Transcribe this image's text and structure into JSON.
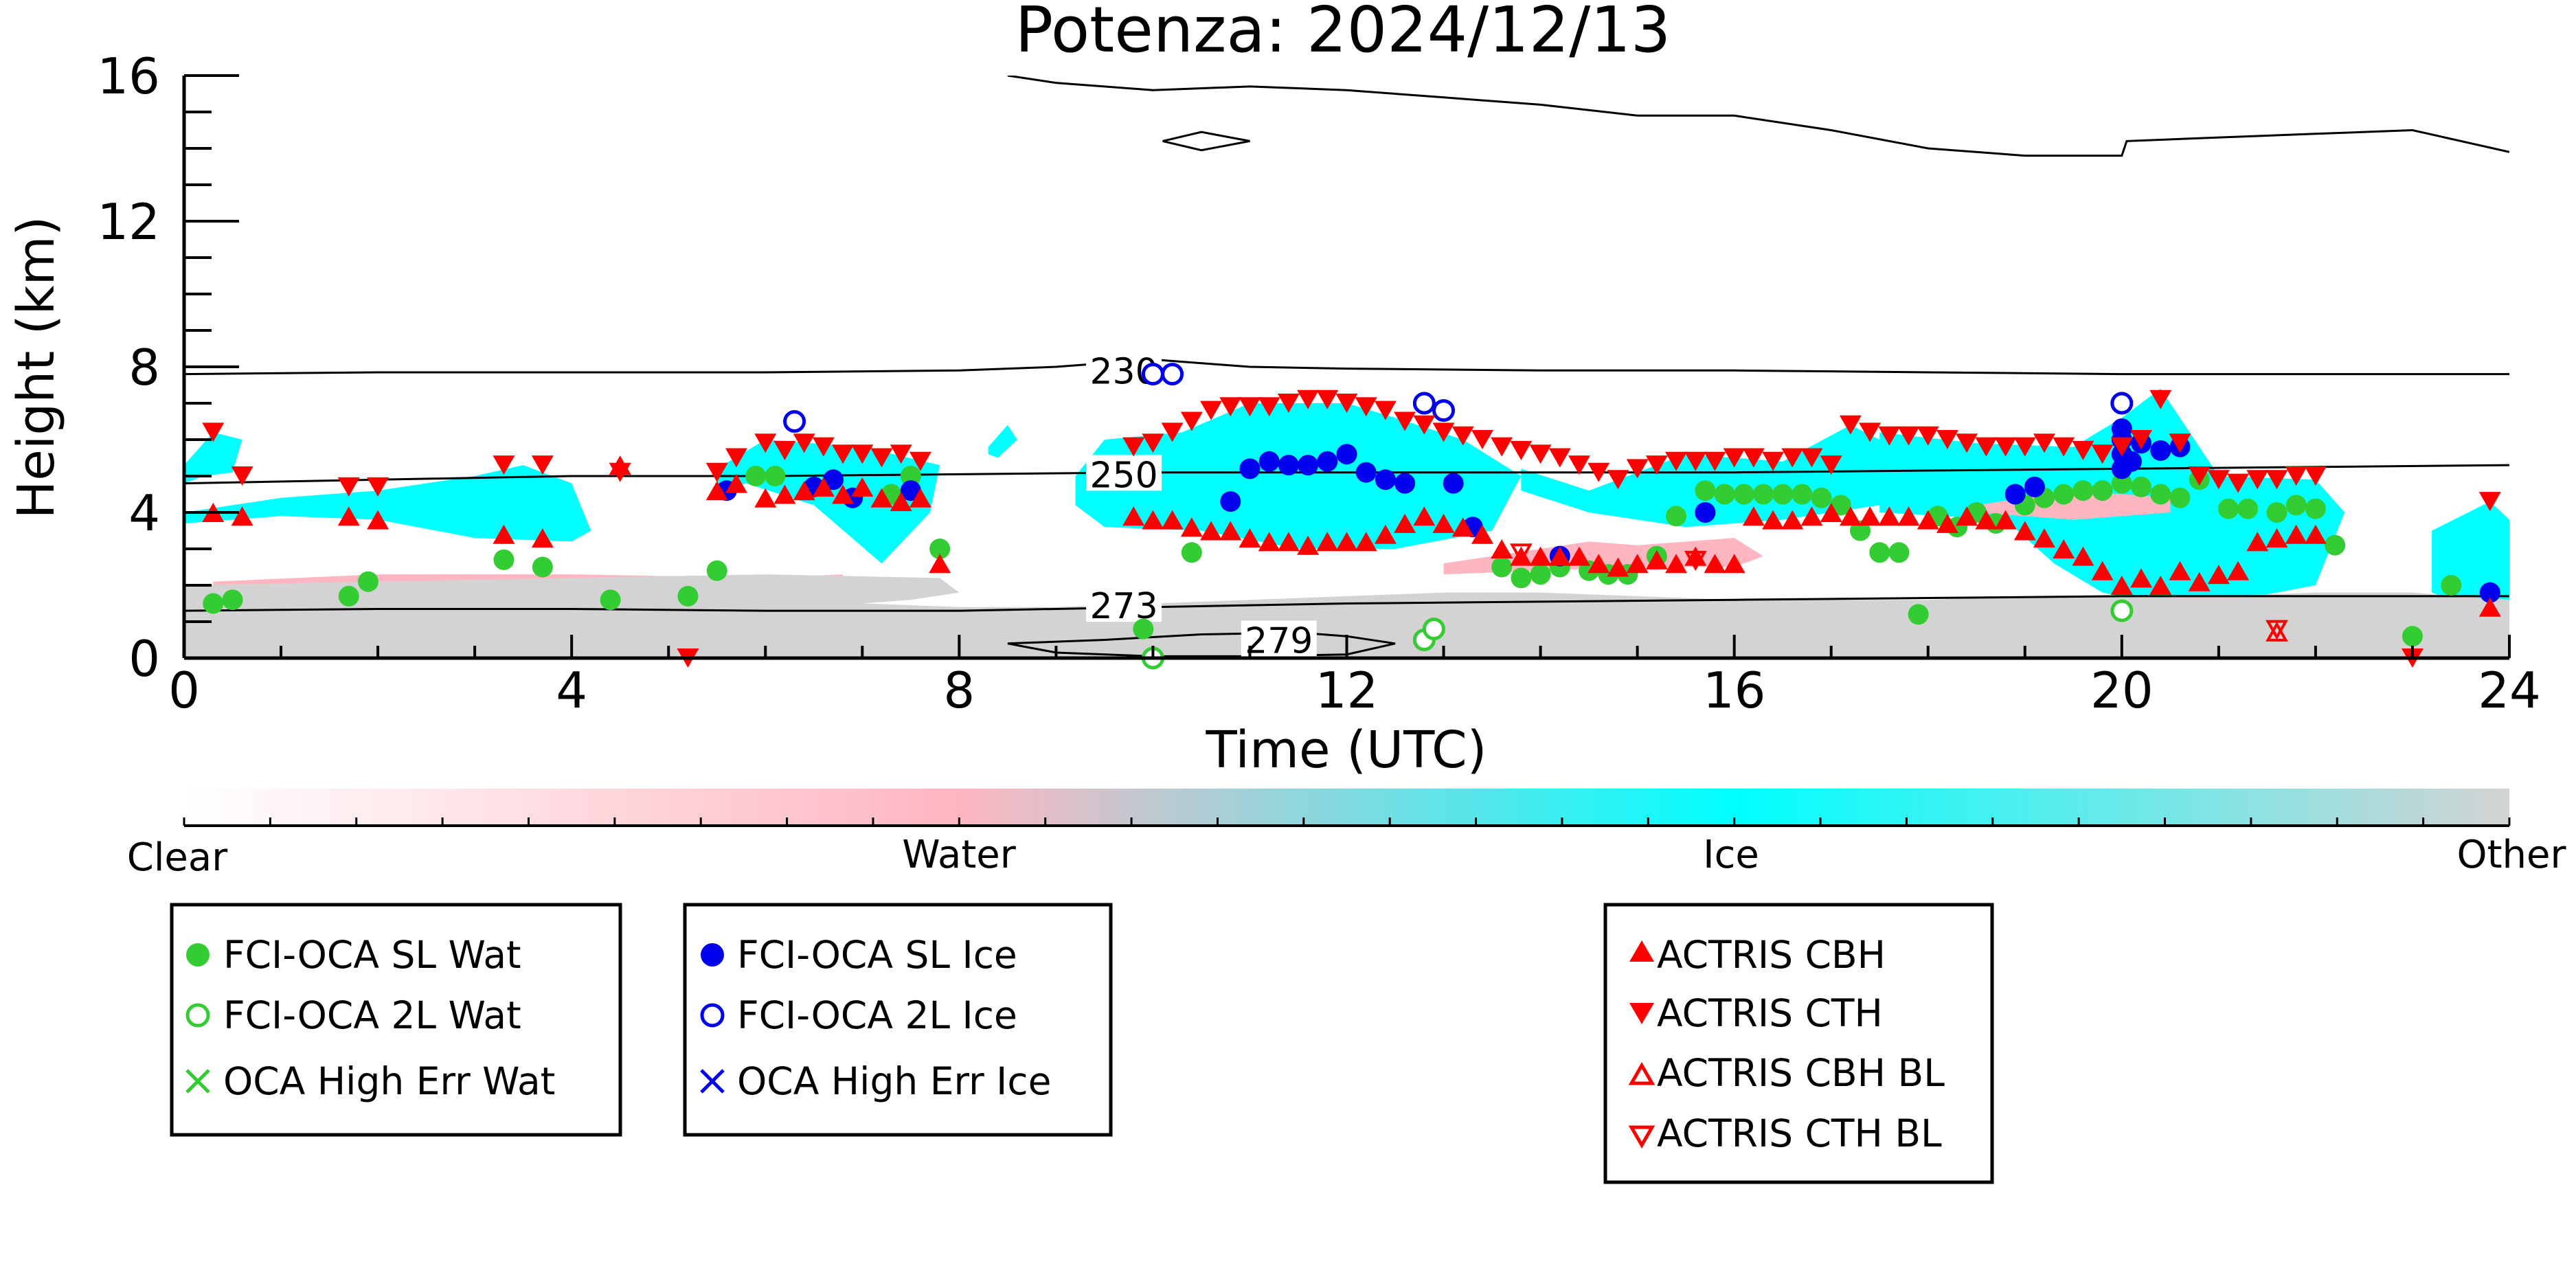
{
  "chart_data": {
    "type": "scatter",
    "title": "Potenza: 2024/12/13",
    "xlabel": "Time (UTC)",
    "ylabel": "Height (km)",
    "xlim": [
      0,
      24
    ],
    "ylim": [
      0,
      16
    ],
    "x_ticks": [
      "0",
      "4",
      "8",
      "12",
      "16",
      "20",
      "24"
    ],
    "y_ticks": [
      "0",
      "4",
      "8",
      "12",
      "16"
    ],
    "grid": false,
    "colorbar": {
      "labels": [
        "Clear",
        "Water",
        "Ice",
        "Other"
      ],
      "colors": {
        "clear": "#ffffff",
        "water": "#ffb6c1",
        "ice": "#00ffff",
        "other": "#d3d3d3"
      }
    },
    "contours": [
      {
        "label": "230",
        "x": [
          0,
          2,
          4,
          6,
          8,
          9,
          10,
          11,
          12,
          14,
          16,
          18,
          20,
          22,
          24
        ],
        "y": [
          7.8,
          7.85,
          7.85,
          7.85,
          7.9,
          8.0,
          8.2,
          8.0,
          7.95,
          7.9,
          7.9,
          7.85,
          7.8,
          7.8,
          7.8
        ]
      },
      {
        "label": "250",
        "x": [
          0,
          2,
          4,
          6,
          8,
          10,
          12,
          14,
          16,
          18,
          20,
          22,
          24
        ],
        "y": [
          4.8,
          4.9,
          5.0,
          5.0,
          5.05,
          5.1,
          5.1,
          5.1,
          5.1,
          5.15,
          5.2,
          5.25,
          5.3
        ]
      },
      {
        "label": "273",
        "x": [
          0,
          2,
          4,
          6,
          8,
          10,
          12,
          14,
          16,
          18,
          20,
          22,
          24
        ],
        "y": [
          1.3,
          1.35,
          1.35,
          1.3,
          1.3,
          1.4,
          1.5,
          1.55,
          1.6,
          1.65,
          1.7,
          1.7,
          1.7
        ]
      },
      {
        "label": "279",
        "x": [
          8.5,
          9.5,
          10.5,
          11.5,
          12,
          12.5,
          12,
          11,
          10,
          9,
          8.5
        ],
        "y": [
          0.4,
          0.5,
          0.65,
          0.7,
          0.6,
          0.4,
          0.1,
          0.05,
          0.05,
          0.15,
          0.4
        ]
      },
      {
        "label": "",
        "x": [
          8.5,
          9,
          10,
          11,
          12,
          13,
          14,
          15,
          16,
          17,
          18,
          19,
          20,
          20.05,
          21,
          22,
          23,
          24
        ],
        "y": [
          16,
          15.8,
          15.6,
          15.7,
          15.6,
          15.4,
          15.2,
          14.9,
          14.9,
          14.5,
          14.0,
          13.8,
          13.8,
          14.2,
          14.3,
          14.4,
          14.5,
          13.9
        ]
      },
      {
        "label": "",
        "x": [
          10.1,
          10.5,
          11.0,
          10.5,
          10.1
        ],
        "y": [
          14.2,
          14.45,
          14.2,
          13.95,
          14.2
        ]
      }
    ],
    "cloud_regions": [
      {
        "phase": "ice",
        "x": [
          0,
          1,
          2,
          3,
          3.5,
          4,
          4.2,
          4,
          3,
          2,
          1,
          0
        ],
        "y": [
          4.0,
          4.4,
          4.6,
          5.0,
          5.3,
          4.8,
          3.5,
          3.2,
          3.3,
          3.8,
          3.9,
          3.7
        ]
      },
      {
        "phase": "ice",
        "x": [
          0,
          0.3,
          0.6,
          0.5,
          0.2,
          0
        ],
        "y": [
          5.3,
          6.2,
          6.0,
          5.1,
          5.0,
          4.8
        ]
      },
      {
        "phase": "ice",
        "x": [
          5.5,
          6,
          7,
          7.8,
          7.7,
          7.2,
          6.5,
          5.8,
          5.5
        ],
        "y": [
          5.2,
          6.0,
          5.8,
          5.3,
          4.0,
          2.6,
          4.2,
          4.8,
          4.5
        ]
      },
      {
        "phase": "ice",
        "x": [
          9.2,
          9.5,
          10.3,
          11,
          12,
          12.5,
          13.2,
          13.8,
          13.5,
          12.5,
          11.5,
          10.5,
          9.5,
          9.2
        ],
        "y": [
          5.0,
          6.0,
          6.2,
          7.0,
          7.0,
          6.6,
          6.0,
          5.0,
          3.5,
          3.0,
          3.0,
          3.5,
          3.6,
          4.2
        ]
      },
      {
        "phase": "ice",
        "x": [
          13.8,
          14.5,
          15.5,
          16.5,
          17.2,
          17.8,
          17.5,
          16.5,
          15.5,
          14.5,
          13.8
        ],
        "y": [
          5.2,
          4.6,
          5.6,
          5.4,
          6.4,
          5.6,
          4.2,
          3.8,
          3.6,
          4.0,
          4.6
        ]
      },
      {
        "phase": "ice",
        "x": [
          17.5,
          18.5,
          19.5,
          20,
          20.4,
          21,
          22,
          22.3,
          22,
          21,
          20.5,
          19.8,
          19.3,
          18.8,
          17.5
        ],
        "y": [
          6.2,
          5.9,
          5.8,
          6.6,
          7.4,
          5.0,
          4.9,
          4.0,
          2.0,
          1.5,
          1.4,
          1.8,
          2.6,
          3.8,
          4.0
        ]
      },
      {
        "phase": "ice",
        "x": [
          23.2,
          23.8,
          24,
          24,
          23.8,
          23.2
        ],
        "y": [
          3.5,
          4.3,
          3.8,
          1.5,
          1.2,
          1.8
        ]
      },
      {
        "phase": "ice",
        "x": [
          8.3,
          8.5,
          8.6,
          8.4,
          8.3
        ],
        "y": [
          5.8,
          6.4,
          6.0,
          5.5,
          5.6
        ]
      },
      {
        "phase": "water",
        "x": [
          0.3,
          2,
          4,
          6,
          6.8,
          6.8,
          5,
          3,
          1,
          0.3
        ],
        "y": [
          2.1,
          2.3,
          2.3,
          2.2,
          2.3,
          2.0,
          2.0,
          2.0,
          1.9,
          1.9
        ]
      },
      {
        "phase": "water",
        "x": [
          13,
          14.5,
          15,
          16,
          16.3,
          16,
          15,
          14,
          13
        ],
        "y": [
          2.6,
          3.2,
          3.1,
          3.3,
          2.8,
          2.5,
          2.5,
          2.4,
          2.3
        ]
      },
      {
        "phase": "water",
        "x": [
          18.5,
          19.5,
          20.5,
          20.5,
          19.5,
          18.5
        ],
        "y": [
          4.2,
          4.6,
          4.4,
          4.0,
          3.8,
          4.0
        ]
      },
      {
        "phase": "other",
        "x": [
          0,
          2,
          4,
          6,
          7.8,
          8,
          7.5,
          7,
          8,
          9,
          10,
          11,
          12,
          13,
          14,
          15,
          16,
          17,
          18,
          19,
          20,
          21,
          22,
          23,
          24,
          24,
          22,
          20,
          18,
          16,
          14,
          12,
          10,
          8,
          6,
          4,
          2,
          0
        ],
        "y": [
          2.0,
          2.1,
          2.2,
          2.3,
          2.2,
          1.8,
          1.6,
          1.5,
          1.4,
          1.4,
          1.5,
          1.6,
          1.7,
          1.8,
          1.8,
          1.7,
          1.6,
          1.6,
          1.6,
          1.7,
          1.7,
          1.7,
          1.8,
          1.8,
          1.6,
          0,
          0,
          0,
          0,
          0,
          0,
          0,
          0,
          0,
          0,
          0,
          0,
          0
        ]
      }
    ],
    "series": [
      {
        "name": "FCI-OCA SL Wat",
        "color": "#33cc33",
        "marker": "filled-circle",
        "x": [
          0.3,
          0.5,
          1.7,
          1.9,
          3.3,
          3.7,
          4.4,
          5.2,
          5.5,
          5.9,
          6.1,
          7.3,
          7.5,
          7.8,
          10.4,
          9.9,
          13.6,
          13.8,
          14.0,
          14.2,
          14.5,
          14.7,
          14.9,
          15.2,
          15.4,
          15.7,
          15.9,
          16.1,
          16.3,
          16.5,
          16.7,
          16.9,
          17.1,
          17.3,
          17.5,
          17.7,
          17.9,
          18.1,
          18.3,
          18.5,
          18.7,
          19.0,
          19.2,
          19.4,
          19.6,
          19.8,
          20.0,
          20.2,
          20.4,
          20.6,
          20.8,
          21.1,
          21.3,
          21.6,
          21.8,
          22.0,
          22.2,
          23.0,
          23.4
        ],
        "y": [
          1.5,
          1.6,
          1.7,
          2.1,
          2.7,
          2.5,
          1.6,
          1.7,
          2.4,
          5.0,
          5.0,
          4.5,
          5.0,
          3.0,
          2.9,
          0.8,
          2.5,
          2.2,
          2.3,
          2.5,
          2.4,
          2.3,
          2.3,
          2.8,
          3.9,
          4.6,
          4.5,
          4.5,
          4.5,
          4.5,
          4.5,
          4.4,
          4.2,
          3.5,
          2.9,
          2.9,
          1.2,
          3.9,
          3.6,
          4.0,
          3.7,
          4.2,
          4.4,
          4.5,
          4.6,
          4.6,
          4.8,
          4.7,
          4.5,
          4.4,
          4.9,
          4.1,
          4.1,
          4.0,
          4.2,
          4.1,
          3.1,
          0.6,
          2.0
        ]
      },
      {
        "name": "FCI-OCA 2L Wat",
        "color": "#33cc33",
        "marker": "open-circle",
        "x": [
          10.0,
          12.8,
          12.9,
          20.0
        ],
        "y": [
          0.0,
          0.5,
          0.8,
          1.3
        ]
      },
      {
        "name": "OCA High Err Wat",
        "color": "#33cc33",
        "marker": "x",
        "x": [],
        "y": []
      },
      {
        "name": "FCI-OCA SL Ice",
        "color": "#0000ee",
        "marker": "filled-circle",
        "x": [
          5.6,
          6.5,
          6.7,
          6.9,
          7.5,
          10.8,
          11.0,
          11.2,
          11.4,
          11.6,
          11.8,
          12.0,
          12.2,
          12.4,
          12.6,
          13.1,
          13.3,
          14.2,
          15.7,
          18.9,
          19.1,
          20.0,
          20.0,
          20.0,
          20.0,
          20.1,
          20.2,
          20.4,
          20.6,
          23.8
        ],
        "y": [
          4.6,
          4.7,
          4.9,
          4.4,
          4.6,
          4.3,
          5.2,
          5.4,
          5.3,
          5.3,
          5.4,
          5.6,
          5.1,
          4.9,
          4.8,
          4.8,
          3.6,
          2.8,
          4.0,
          4.5,
          4.7,
          5.2,
          5.6,
          6.0,
          6.3,
          5.4,
          5.9,
          5.7,
          5.8,
          1.8
        ]
      },
      {
        "name": "FCI-OCA 2L Ice",
        "color": "#0000ee",
        "marker": "open-circle",
        "x": [
          6.3,
          10.0,
          10.2,
          12.8,
          13.0,
          20.0
        ],
        "y": [
          6.5,
          7.8,
          7.8,
          7.0,
          6.8,
          7.0
        ]
      },
      {
        "name": "OCA High Err Ice",
        "color": "#0000ee",
        "marker": "x",
        "x": [],
        "y": []
      },
      {
        "name": "ACTRIS CBH",
        "color": "#ff0000",
        "marker": "filled-triangle-up",
        "x": [
          0.3,
          0.6,
          1.7,
          2.0,
          3.3,
          3.7,
          4.5,
          5.5,
          5.7,
          6.0,
          6.2,
          6.4,
          6.6,
          6.8,
          7.0,
          7.2,
          7.4,
          7.6,
          7.8,
          9.8,
          10.0,
          10.2,
          10.4,
          10.6,
          10.8,
          11.0,
          11.2,
          11.4,
          11.6,
          11.8,
          12.0,
          12.2,
          12.4,
          12.6,
          12.8,
          13.0,
          13.2,
          13.4,
          13.6,
          13.8,
          14.0,
          14.2,
          14.4,
          14.6,
          14.8,
          15.0,
          15.2,
          15.4,
          15.6,
          15.8,
          16.0,
          16.2,
          16.4,
          16.6,
          16.8,
          17.0,
          17.2,
          17.4,
          17.6,
          17.8,
          18.0,
          18.2,
          18.4,
          18.6,
          18.8,
          19.0,
          19.2,
          19.4,
          19.6,
          19.8,
          20.0,
          20.2,
          20.4,
          20.6,
          20.8,
          21.0,
          21.2,
          21.4,
          21.6,
          21.8,
          22.0,
          23.8
        ],
        "y": [
          4.0,
          3.9,
          3.9,
          3.8,
          3.4,
          3.3,
          5.3,
          4.6,
          4.8,
          4.4,
          4.5,
          4.6,
          4.7,
          4.5,
          4.7,
          4.4,
          4.3,
          4.4,
          2.6,
          3.9,
          3.8,
          3.8,
          3.6,
          3.5,
          3.5,
          3.3,
          3.2,
          3.2,
          3.1,
          3.2,
          3.2,
          3.2,
          3.4,
          3.7,
          3.9,
          3.7,
          3.6,
          3.4,
          3.0,
          2.8,
          2.8,
          2.8,
          2.8,
          2.6,
          2.5,
          2.6,
          2.7,
          2.6,
          2.8,
          2.6,
          2.6,
          3.9,
          3.8,
          3.8,
          3.9,
          4.0,
          3.9,
          3.9,
          3.9,
          3.9,
          3.8,
          3.7,
          3.9,
          3.8,
          3.8,
          3.5,
          3.3,
          3.0,
          2.8,
          2.4,
          2.0,
          2.2,
          2.0,
          2.4,
          2.1,
          2.3,
          2.4,
          3.2,
          3.3,
          3.4,
          3.4,
          1.4
        ]
      },
      {
        "name": "ACTRIS CTH",
        "color": "#ff0000",
        "marker": "filled-triangle-down",
        "x": [
          0.3,
          0.6,
          1.7,
          2.0,
          3.3,
          3.7,
          4.5,
          5.2,
          5.5,
          5.7,
          6.0,
          6.2,
          6.4,
          6.6,
          6.8,
          7.0,
          7.2,
          7.4,
          7.6,
          9.8,
          10.0,
          10.2,
          10.4,
          10.6,
          10.8,
          11.0,
          11.2,
          11.4,
          11.6,
          11.8,
          12.0,
          12.2,
          12.4,
          12.6,
          12.8,
          13.0,
          13.2,
          13.4,
          13.6,
          13.8,
          14.0,
          14.2,
          14.4,
          14.6,
          14.8,
          15.0,
          15.2,
          15.4,
          15.6,
          15.8,
          16.0,
          16.2,
          16.4,
          16.6,
          16.8,
          17.0,
          17.2,
          17.4,
          17.6,
          17.8,
          18.0,
          18.2,
          18.4,
          18.6,
          18.8,
          19.0,
          19.2,
          19.4,
          19.6,
          19.8,
          20.0,
          20.2,
          20.4,
          20.6,
          20.8,
          21.0,
          21.2,
          21.4,
          21.6,
          21.8,
          22.0,
          23.0,
          23.8
        ],
        "y": [
          6.2,
          5.0,
          4.7,
          4.7,
          5.3,
          5.3,
          5.1,
          0.0,
          5.1,
          5.5,
          5.9,
          5.7,
          5.9,
          5.8,
          5.6,
          5.6,
          5.5,
          5.6,
          5.4,
          5.8,
          5.9,
          6.2,
          6.5,
          6.8,
          6.9,
          6.9,
          6.9,
          7.0,
          7.1,
          7.1,
          7.0,
          6.9,
          6.8,
          6.5,
          6.4,
          6.2,
          6.1,
          6.0,
          5.8,
          5.7,
          5.6,
          5.5,
          5.3,
          5.1,
          4.9,
          5.2,
          5.3,
          5.4,
          5.4,
          5.4,
          5.5,
          5.5,
          5.4,
          5.5,
          5.5,
          5.3,
          6.4,
          6.2,
          6.1,
          6.1,
          6.1,
          6.0,
          5.9,
          5.8,
          5.8,
          5.8,
          5.9,
          5.8,
          5.7,
          5.6,
          5.8,
          6.0,
          7.1,
          5.9,
          5.0,
          4.9,
          4.8,
          4.9,
          4.9,
          5.0,
          5.0,
          0.0,
          4.3
        ]
      },
      {
        "name": "ACTRIS CBH BL",
        "color": "#ff0000",
        "marker": "open-triangle-up",
        "x": [
          21.6
        ],
        "y": [
          0.7
        ]
      },
      {
        "name": "ACTRIS CTH BL",
        "color": "#ff0000",
        "marker": "open-triangle-down",
        "x": [
          13.8,
          15.6,
          21.6
        ],
        "y": [
          2.9,
          2.7,
          0.8
        ]
      }
    ]
  }
}
